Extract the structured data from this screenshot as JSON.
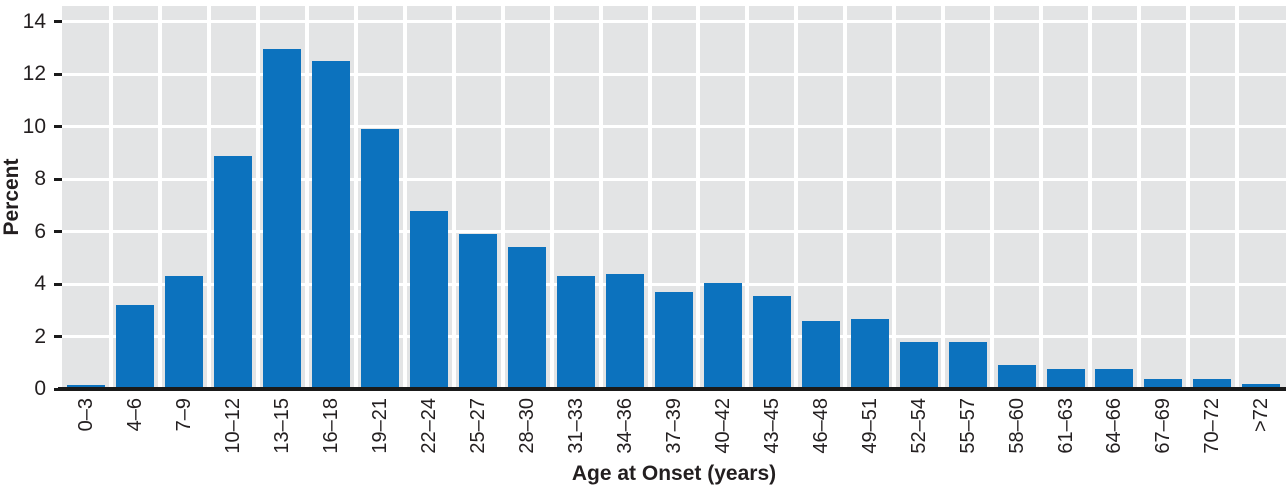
{
  "chart_data": {
    "type": "bar",
    "title": "",
    "xlabel": "Age at Onset (years)",
    "ylabel": "Percent",
    "categories": [
      "0–3",
      "4–6",
      "7–9",
      "10–12",
      "13–15",
      "16–18",
      "19–21",
      "22–24",
      "25–27",
      "28–30",
      "31–33",
      "34–36",
      "37–39",
      "40–42",
      "43–45",
      "46–48",
      "49–51",
      "52–54",
      "55–57",
      "58–60",
      "61–63",
      "64–66",
      "67–69",
      "70–72",
      ">72"
    ],
    "values": [
      0.15,
      3.2,
      4.3,
      8.9,
      12.95,
      12.5,
      9.9,
      6.8,
      5.9,
      5.4,
      4.3,
      4.4,
      3.7,
      4.05,
      3.55,
      2.6,
      2.65,
      1.8,
      1.8,
      0.9,
      0.75,
      0.75,
      0.4,
      0.4,
      0.2
    ],
    "yticks": [
      0,
      2,
      4,
      6,
      8,
      10,
      12,
      14
    ],
    "ylim": [
      0,
      14.6
    ],
    "legend_position": "none",
    "grid": "white horizontal lines every 2 units and vertical lines between categories on gray panel",
    "colors": {
      "bar": "#0c72be",
      "panel_background": "#e3e4e5",
      "gridline": "#ffffff",
      "axis_line": "#1a1a1a",
      "text": "#231f20"
    }
  }
}
